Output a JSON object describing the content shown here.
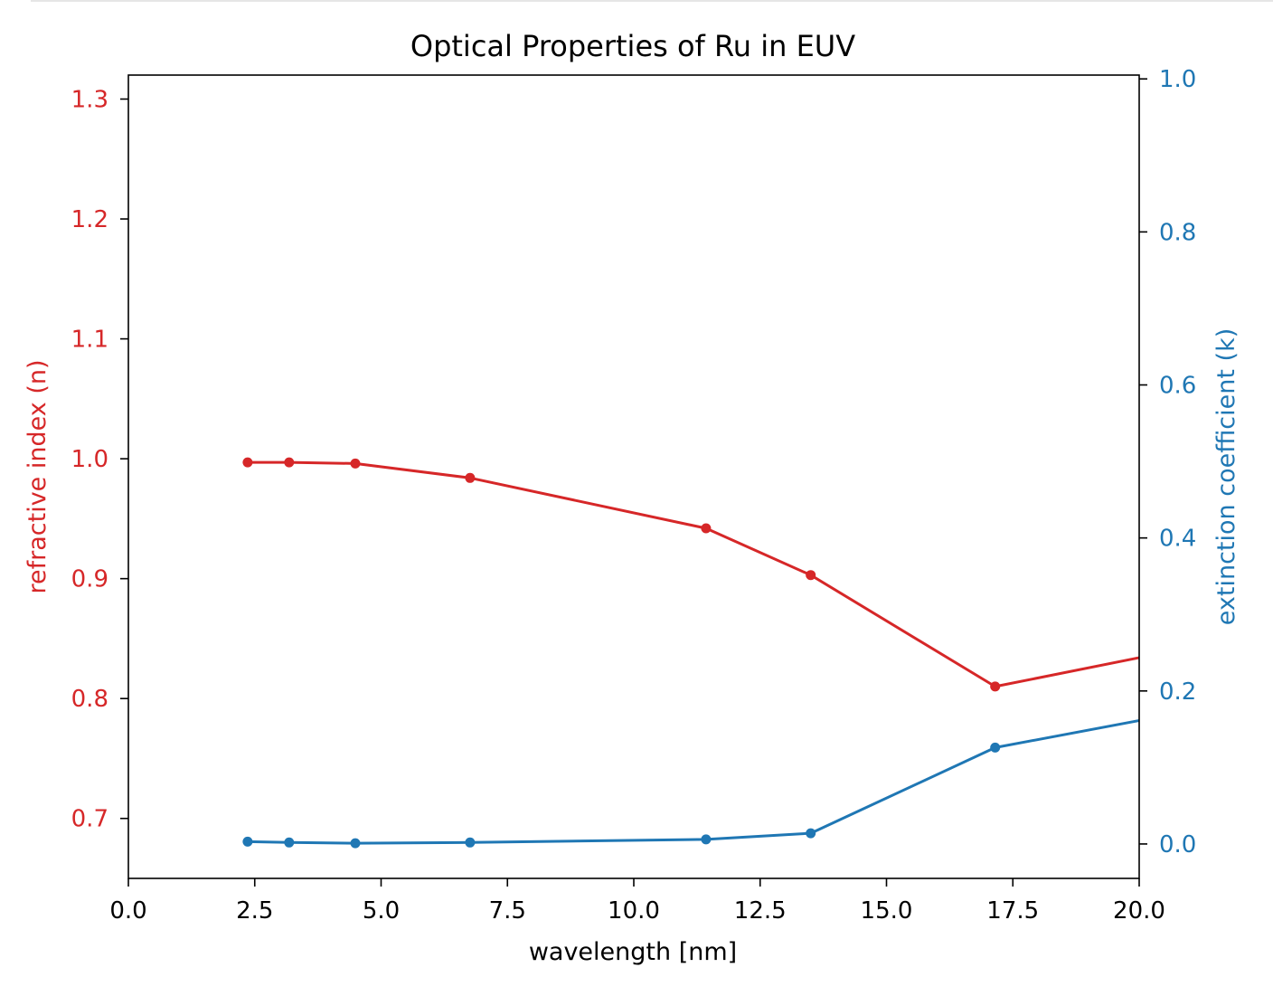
{
  "chart_data": {
    "type": "line",
    "title": "Optical Properties of Ru in EUV",
    "xlabel": "wavelength [nm]",
    "ylabel_left": "refractive index (n)",
    "ylabel_right": "extinction coefficient (k)",
    "xlim": [
      0,
      20
    ],
    "ylim_left": [
      0.65,
      1.32
    ],
    "ylim_right": [
      -0.045,
      1.005
    ],
    "x_ticks": [
      "0.0",
      "2.5",
      "5.0",
      "7.5",
      "10.0",
      "12.5",
      "15.0",
      "17.5",
      "20.0"
    ],
    "y_left_ticks": [
      "0.7",
      "0.8",
      "0.9",
      "1.0",
      "1.1",
      "1.2",
      "1.3"
    ],
    "y_right_ticks": [
      "0.0",
      "0.2",
      "0.4",
      "0.6",
      "0.8",
      "1.0"
    ],
    "grid": false,
    "colors": {
      "n": "#d62728",
      "k": "#1f77b4"
    },
    "series": [
      {
        "axis": "left",
        "x": [
          2.36,
          3.18,
          4.49,
          6.76,
          11.43,
          13.5,
          17.15,
          20.7
        ],
        "y": [
          0.997,
          0.997,
          0.996,
          0.984,
          0.942,
          0.903,
          0.81,
          0.84
        ]
      },
      {
        "axis": "right",
        "x": [
          2.36,
          3.18,
          4.49,
          6.76,
          11.43,
          13.5,
          17.15,
          20.7
        ],
        "y": [
          0.003,
          0.002,
          0.001,
          0.002,
          0.006,
          0.014,
          0.126,
          0.17
        ]
      }
    ]
  }
}
